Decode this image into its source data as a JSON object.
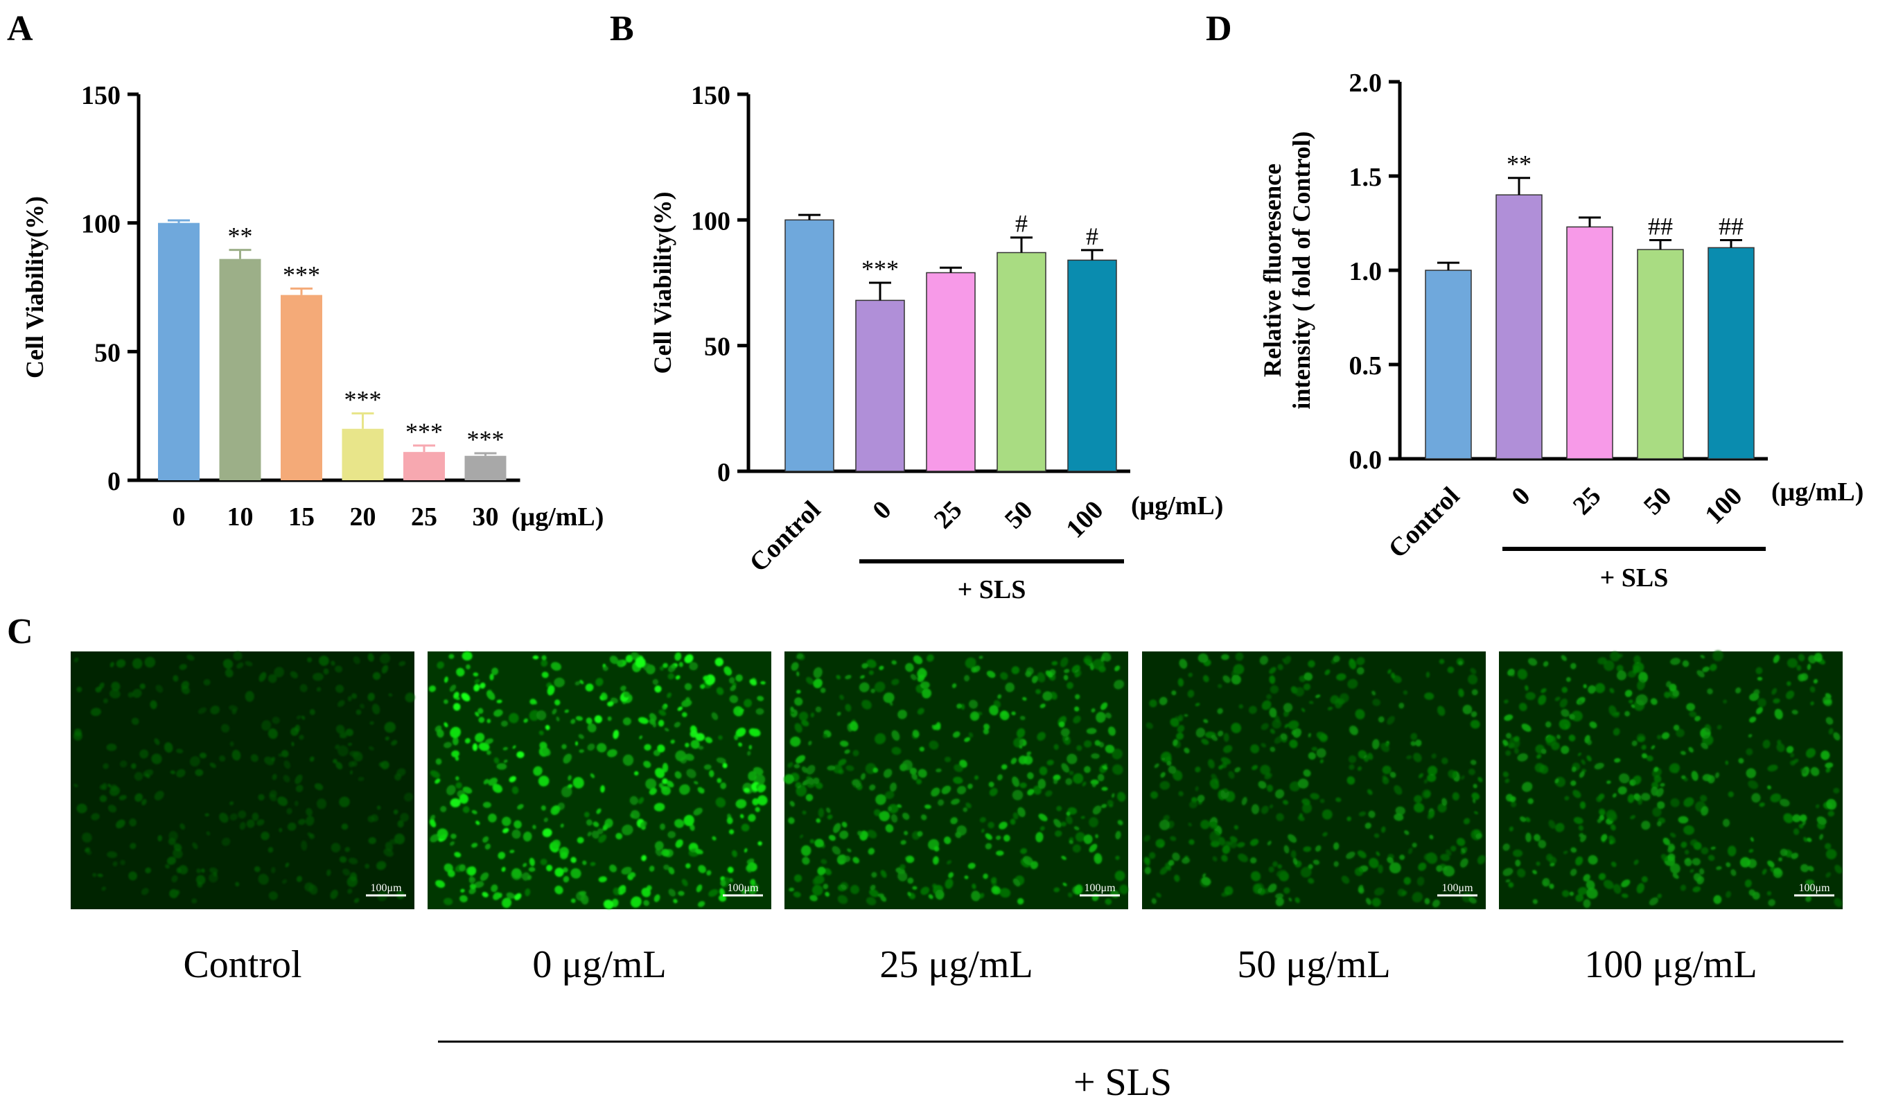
{
  "panels": {
    "A": "A",
    "B": "B",
    "C": "C",
    "D": "D"
  },
  "chart_data": [
    {
      "id": "A",
      "type": "bar",
      "ylabel": "Cell Viability(%)",
      "ylim": [
        0,
        150
      ],
      "yticks": [
        0,
        50,
        100,
        150
      ],
      "unit": "(μg/mL)",
      "categories": [
        "0",
        "10",
        "15",
        "20",
        "25",
        "30"
      ],
      "values": [
        100,
        86,
        72,
        20,
        11,
        9.5
      ],
      "errors": [
        1,
        3.5,
        2.5,
        6,
        2.5,
        1
      ],
      "annotations": [
        "",
        "**",
        "***",
        "***",
        "***",
        "***"
      ],
      "colors": [
        "#6fa8dc",
        "#9caf88",
        "#f4aa78",
        "#e8e58a",
        "#f7a8b0",
        "#a8a8a8"
      ],
      "grid": false
    },
    {
      "id": "B",
      "type": "bar",
      "ylabel": "Cell Viability(%)",
      "ylim": [
        0,
        150
      ],
      "yticks": [
        0,
        50,
        100,
        150
      ],
      "unit": "(μg/mL)",
      "categories": [
        "Control",
        "0",
        "25",
        "50",
        "100"
      ],
      "values": [
        100,
        68,
        79,
        87,
        84
      ],
      "errors": [
        2,
        7,
        2,
        6,
        4
      ],
      "annotations": [
        "",
        "***",
        "",
        "#",
        "#"
      ],
      "colors": [
        "#6fa8dc",
        "#b08fd8",
        "#f79ae8",
        "#a9dc82",
        "#0a8caf"
      ],
      "group_label": "+ SLS",
      "grid": false
    },
    {
      "id": "D",
      "type": "bar",
      "ylabel": "Relative fluoresence\nintensity ( fold of Control)",
      "ylim": [
        0,
        2.0
      ],
      "yticks": [
        0.0,
        0.5,
        1.0,
        1.5,
        2.0
      ],
      "unit": "(μg/mL)",
      "categories": [
        "Control",
        "0",
        "25",
        "50",
        "100"
      ],
      "values": [
        1.0,
        1.4,
        1.23,
        1.11,
        1.12
      ],
      "errors": [
        0.04,
        0.09,
        0.05,
        0.05,
        0.04
      ],
      "annotations": [
        "",
        "**",
        "",
        "##",
        "##"
      ],
      "colors": [
        "#6fa8dc",
        "#b08fd8",
        "#f79ae8",
        "#a9dc82",
        "#0a8caf"
      ],
      "group_label": "+ SLS",
      "grid": false
    }
  ],
  "panel_c": {
    "images": [
      {
        "caption": "Control",
        "scale_bar": "100μm",
        "brightness": 0.25,
        "density": 0.6
      },
      {
        "caption": "0 μg/mL",
        "scale_bar": "100μm",
        "brightness": 1.0,
        "density": 1.0
      },
      {
        "caption": "25 μg/mL",
        "scale_bar": "100μm",
        "brightness": 0.75,
        "density": 0.95
      },
      {
        "caption": "50 μg/mL",
        "scale_bar": "100μm",
        "brightness": 0.55,
        "density": 0.85
      },
      {
        "caption": "100 μg/mL",
        "scale_bar": "100μm",
        "brightness": 0.65,
        "density": 0.9
      }
    ],
    "group_label": "+ SLS"
  }
}
